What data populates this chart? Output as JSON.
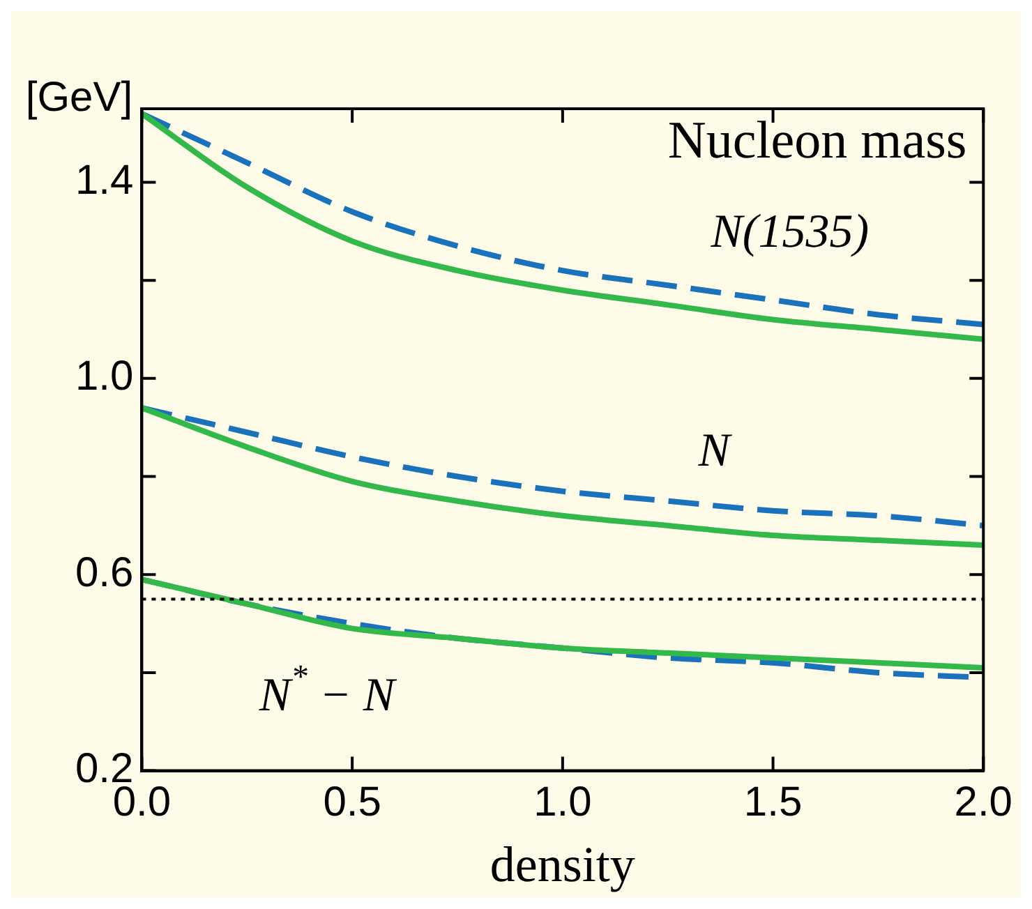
{
  "chart_data": {
    "type": "line",
    "title": "Nucleon mass",
    "xlabel": "density",
    "ylabel": "[GeV]",
    "x": [
      0,
      0.25,
      0.5,
      0.75,
      1.0,
      1.25,
      1.5,
      1.75,
      2.0
    ],
    "series": [
      {
        "color": "#33b84a",
        "line_style": "solid",
        "values": [
          1.54,
          1.39,
          1.28,
          1.22,
          1.18,
          1.15,
          1.12,
          1.1,
          1.08
        ]
      },
      {
        "color": "#1a72bd",
        "line_style": "dashed",
        "values": [
          1.54,
          1.44,
          1.34,
          1.27,
          1.22,
          1.19,
          1.16,
          1.13,
          1.11
        ]
      },
      {
        "color": "#33b84a",
        "line_style": "solid",
        "values": [
          0.94,
          0.86,
          0.79,
          0.75,
          0.72,
          0.7,
          0.68,
          0.67,
          0.66
        ]
      },
      {
        "color": "#1a72bd",
        "line_style": "dashed",
        "values": [
          0.94,
          0.89,
          0.84,
          0.8,
          0.77,
          0.75,
          0.73,
          0.72,
          0.7
        ]
      },
      {
        "color": "#33b84a",
        "line_style": "solid",
        "values": [
          0.59,
          0.54,
          0.49,
          0.47,
          0.45,
          0.44,
          0.43,
          0.42,
          0.41
        ]
      },
      {
        "color": "#1a72bd",
        "line_style": "dashed",
        "values": [
          0.59,
          0.54,
          0.5,
          0.47,
          0.45,
          0.43,
          0.42,
          0.4,
          0.39
        ]
      }
    ],
    "xlim": [
      0,
      2.0
    ],
    "xticks": [
      {
        "value": 0,
        "label": "0.0"
      },
      0.5,
      {
        "value": 1,
        "label": "1.0"
      },
      1.5,
      {
        "value": 2,
        "label": "2.0"
      }
    ],
    "ylim": [
      0.2,
      1.55
    ],
    "yticks": [
      0.2,
      {
        "value": 0.4,
        "label": null
      },
      0.6,
      {
        "value": 0.8,
        "label": null
      },
      {
        "value": 1,
        "label": "1.0"
      },
      {
        "value": 1.2,
        "label": null
      },
      1.4
    ],
    "ref_lines": [
      {
        "axis": "y",
        "value": 0.55,
        "color": "#000000",
        "line_style": "dotted"
      }
    ],
    "annotations": [
      "N(1535)",
      "N",
      "N$^{*}$ − N"
    ],
    "grid": false,
    "legend": false,
    "marker": "none"
  }
}
